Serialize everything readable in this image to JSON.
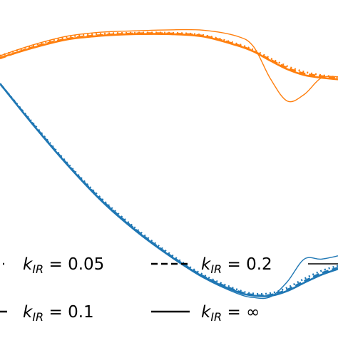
{
  "chart_data": {
    "type": "line",
    "title": "",
    "xlabel": "",
    "ylabel": "",
    "xlim": [
      0,
      1
    ],
    "ylim": [
      0,
      1
    ],
    "grid": false,
    "legend_placement": "bottom",
    "colors": {
      "orange": "#ff7f0e",
      "blue": "#1f77b4",
      "legend_line": "#000000"
    },
    "legend": [
      {
        "label_base": "k",
        "label_sub": "IR",
        "label_tail": " = 0.05",
        "style": "dotted"
      },
      {
        "label_base": "k",
        "label_sub": "IR",
        "label_tail": " = 0.2",
        "style": "dashed"
      },
      {
        "label_base": "k",
        "label_sub": "IR",
        "label_tail": " = 0.1",
        "style": "dashdot"
      },
      {
        "label_base": "k",
        "label_sub": "IR",
        "label_tail": " = ∞",
        "style": "solid"
      },
      {
        "label_base": "",
        "label_sub": "",
        "label_tail": "",
        "style": "thin-solid"
      }
    ],
    "series": [
      {
        "color": "orange",
        "style": "dotted",
        "x": [
          0,
          0.1,
          0.2,
          0.3,
          0.4,
          0.5,
          0.6,
          0.7,
          0.75,
          0.8,
          0.85,
          0.9,
          0.95,
          1.0
        ],
        "y": [
          0.83,
          0.862,
          0.887,
          0.897,
          0.9,
          0.9,
          0.893,
          0.867,
          0.848,
          0.822,
          0.798,
          0.781,
          0.771,
          0.764
        ]
      },
      {
        "color": "orange",
        "style": "dashed",
        "x": [
          0,
          0.1,
          0.2,
          0.3,
          0.4,
          0.5,
          0.6,
          0.7,
          0.75,
          0.8,
          0.85,
          0.9,
          0.95,
          1.0
        ],
        "y": [
          0.822,
          0.857,
          0.882,
          0.893,
          0.898,
          0.898,
          0.891,
          0.864,
          0.844,
          0.818,
          0.793,
          0.776,
          0.768,
          0.762
        ]
      },
      {
        "color": "orange",
        "style": "solid",
        "x": [
          0,
          0.1,
          0.2,
          0.3,
          0.4,
          0.5,
          0.6,
          0.7,
          0.75,
          0.8,
          0.85,
          0.9,
          0.95,
          1.0
        ],
        "y": [
          0.824,
          0.855,
          0.88,
          0.891,
          0.896,
          0.896,
          0.889,
          0.862,
          0.843,
          0.815,
          0.789,
          0.771,
          0.763,
          0.758
        ]
      },
      {
        "color": "orange",
        "style": "thin-solid",
        "x": [
          0,
          0.1,
          0.2,
          0.3,
          0.4,
          0.5,
          0.6,
          0.7,
          0.75,
          0.8,
          0.85,
          0.9,
          0.95,
          1.0
        ],
        "y": [
          0.83,
          0.864,
          0.89,
          0.902,
          0.906,
          0.909,
          0.908,
          0.89,
          0.858,
          0.76,
          0.692,
          0.712,
          0.762,
          0.766
        ]
      },
      {
        "color": "blue",
        "style": "dotted",
        "x": [
          0,
          0.1,
          0.2,
          0.3,
          0.4,
          0.5,
          0.6,
          0.7,
          0.75,
          0.8,
          0.85,
          0.9,
          0.95,
          1.0
        ],
        "y": [
          0.745,
          0.622,
          0.502,
          0.395,
          0.305,
          0.228,
          0.163,
          0.118,
          0.105,
          0.106,
          0.123,
          0.15,
          0.174,
          0.19
        ]
      },
      {
        "color": "blue",
        "style": "dashed",
        "x": [
          0,
          0.1,
          0.2,
          0.3,
          0.4,
          0.5,
          0.6,
          0.7,
          0.75,
          0.8,
          0.85,
          0.9,
          0.95,
          1.0
        ],
        "y": [
          0.745,
          0.619,
          0.499,
          0.391,
          0.301,
          0.224,
          0.159,
          0.114,
          0.101,
          0.101,
          0.117,
          0.143,
          0.167,
          0.184
        ]
      },
      {
        "color": "blue",
        "style": "solid",
        "x": [
          0,
          0.1,
          0.2,
          0.3,
          0.4,
          0.5,
          0.6,
          0.7,
          0.75,
          0.8,
          0.85,
          0.9,
          0.95,
          1.0
        ],
        "y": [
          0.745,
          0.617,
          0.497,
          0.389,
          0.299,
          0.222,
          0.157,
          0.111,
          0.099,
          0.098,
          0.113,
          0.138,
          0.162,
          0.18
        ]
      },
      {
        "color": "blue",
        "style": "thin-solid",
        "x": [
          0,
          0.1,
          0.2,
          0.3,
          0.4,
          0.5,
          0.6,
          0.7,
          0.75,
          0.8,
          0.85,
          0.9,
          0.95,
          1.0
        ],
        "y": [
          0.745,
          0.616,
          0.495,
          0.386,
          0.296,
          0.22,
          0.154,
          0.106,
          0.093,
          0.095,
          0.141,
          0.21,
          0.21,
          0.22
        ]
      }
    ]
  }
}
